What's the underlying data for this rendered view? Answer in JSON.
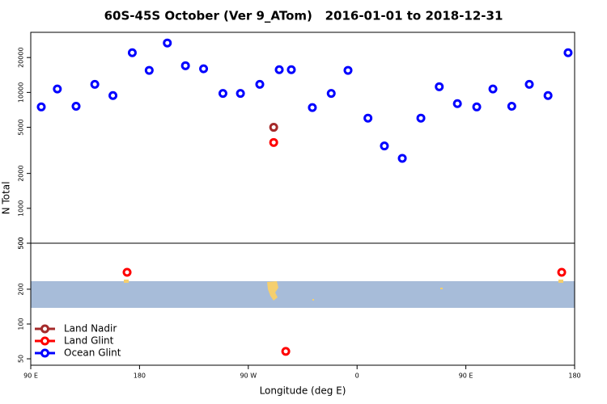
{
  "chart_data": [
    {
      "type": "scatter",
      "title": "60S-45S October (Ver 9_ATom)   2016-01-01 to 2018-12-31",
      "ylabel": "N Total",
      "log_y": true,
      "ylim": [
        500,
        33000
      ],
      "yticks": [
        500,
        1000,
        2000,
        5000,
        10000,
        20000
      ],
      "xlim": [
        90,
        540
      ],
      "series": [
        {
          "name": "Land Nadir",
          "color": "#a52a2a",
          "x": [
            291
          ],
          "values": [
            5000
          ]
        },
        {
          "name": "Land Glint",
          "color": "#ff0000",
          "x": [
            291
          ],
          "values": [
            3700
          ]
        },
        {
          "name": "Ocean Glint",
          "color": "#0000ff",
          "x": [
            98.7,
            112,
            127.5,
            143,
            158,
            174,
            188,
            203,
            218,
            233,
            249,
            263.5,
            279.5,
            295.6,
            305.6,
            323,
            338.6,
            352.5,
            369,
            382.6,
            397.4,
            412.8,
            428,
            443,
            459,
            472.4,
            488,
            502.5,
            518,
            534.6
          ],
          "values": [
            7500,
            10700,
            7600,
            11750,
            9400,
            22000,
            15500,
            26700,
            17000,
            16000,
            9800,
            9800,
            11750,
            15700,
            15700,
            7400,
            9800,
            15500,
            6000,
            3450,
            2700,
            6000,
            11200,
            8000,
            7500,
            10700,
            7600,
            11750,
            9400,
            22000
          ]
        }
      ]
    },
    {
      "type": "scatter",
      "xlabel": "Longitude (deg E)",
      "log_y": true,
      "ylim": [
        44,
        500
      ],
      "yticks": [
        50,
        100,
        200,
        500
      ],
      "xlim": [
        90,
        540
      ],
      "xticks": [
        {
          "value": 90,
          "label": "90 E"
        },
        180,
        {
          "value": 270,
          "label": "90 W"
        },
        {
          "value": 360,
          "label": "0"
        },
        {
          "value": 450,
          "label": "90 E"
        },
        {
          "value": 540,
          "label": "180"
        }
      ],
      "legend": "lower left",
      "series": [
        {
          "name": "Land Nadir",
          "color": "#a52a2a",
          "x": [],
          "values": []
        },
        {
          "name": "Land Glint",
          "color": "#ff0000",
          "x": [
            169.7,
            529.3,
            301
          ],
          "values": [
            280,
            280,
            58
          ]
        },
        {
          "name": "Ocean Glint",
          "color": "#0000ff",
          "x": [],
          "values": []
        }
      ]
    }
  ]
}
